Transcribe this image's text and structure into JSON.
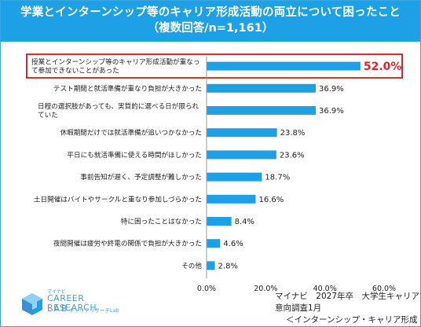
{
  "header": {
    "title_line1": "学業とインターンシップ等のキャリア形成活動の両立について困ったこと",
    "title_line2": "（複数回答/n=1,161）"
  },
  "chart_data": {
    "type": "bar",
    "orientation": "horizontal",
    "categories": [
      [
        "授業とインターンシップ等のキャリア形成活動が重なっ",
        "て参加できないことがあった"
      ],
      [
        "テスト期間と就活準備が重なり負担が大きかった"
      ],
      [
        "日程の選択肢があっても、実質的に選べる日が限られ",
        "ていた"
      ],
      [
        "休暇期間だけでは就活準備が追いつかなかった"
      ],
      [
        "平日にも就活準備に使える時間がほしかった"
      ],
      [
        "事前告知が遅く、予定調整が難しかった"
      ],
      [
        "土日開催はバイトやサークルと重なり参加しづらかった"
      ],
      [
        "特に困ったことはなかった"
      ],
      [
        "夜間開催は疲労や終電の関係で負担が大きかった"
      ],
      [
        "その他"
      ]
    ],
    "values": [
      52.0,
      36.9,
      36.9,
      23.8,
      23.6,
      18.7,
      16.6,
      8.4,
      4.6,
      2.8
    ],
    "value_labels": [
      "52.0%",
      "36.9%",
      "36.9%",
      "23.8%",
      "23.6%",
      "18.7%",
      "16.6%",
      "8.4%",
      "4.6%",
      "2.8%"
    ],
    "highlight_index": 0,
    "xlim": [
      0,
      60
    ],
    "x_ticks": [
      "0.0%",
      "20.0%",
      "40.0%",
      "60.0%"
    ],
    "x_tick_values": [
      0,
      20,
      40,
      60
    ],
    "grid": false,
    "colors": {
      "bar": "#1ea0e6",
      "highlight_text": "#e0242b",
      "highlight_box": "#d9262c"
    }
  },
  "source": {
    "line1": "マイナビ　2027年卒　大学生キャリア意向調査1月",
    "line2": "＜インターンシップ・キャリア形成活動＞"
  },
  "logo": {
    "small": "マイナビ",
    "name": "CAREER RESEARCH",
    "lab": "LAB",
    "jp": "キャリアリサーチLab"
  }
}
